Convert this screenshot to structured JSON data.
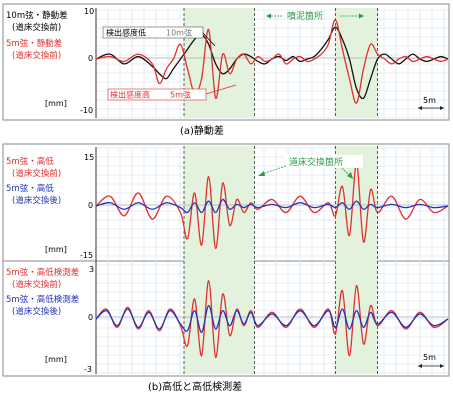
{
  "colors": {
    "black_series": "#111111",
    "red_series": "#e23030",
    "blue_series": "#2233bb",
    "shade": "#e3f2dd",
    "grid": "#cfe0ee",
    "annotation_green": "#2a9a4a"
  },
  "scale_label": "5m",
  "unit_label": "[mm]",
  "panel_a": {
    "caption": "(a)静動差",
    "legend": [
      {
        "text": "10m弦・静動差",
        "color": "#111111"
      },
      {
        "text": "(道床交換前)",
        "color": "#111111"
      },
      {
        "text": "5m弦・静動差",
        "color": "#e23030"
      },
      {
        "text": "(道床交換前)",
        "color": "#e23030"
      }
    ],
    "annotation_mud": "噴泥箇所",
    "label_low_sens": "検出感度低",
    "label_low_sens_tag": "10m弦",
    "label_high_sens": "検出感度高",
    "label_high_sens_tag": "5m弦"
  },
  "panel_b": {
    "caption": "(b)高低と高低検測差",
    "annotation_replace": "道床交換箇所",
    "top_legend": [
      {
        "text": "5m弦・高低",
        "color": "#e23030"
      },
      {
        "text": "(道床交換前)",
        "color": "#e23030"
      },
      {
        "text": "5m弦・高低",
        "color": "#2233bb"
      },
      {
        "text": "(道床交換後)",
        "color": "#2233bb"
      }
    ],
    "bottom_legend": [
      {
        "text": "5m弦・高低検測差",
        "color": "#e23030"
      },
      {
        "text": "(道床交換前)",
        "color": "#e23030"
      },
      {
        "text": "5m弦・高低検測差",
        "color": "#2233bb"
      },
      {
        "text": "(道床交換後)",
        "color": "#2233bb"
      }
    ]
  },
  "chart_data": [
    {
      "type": "line",
      "title": "(a)静動差",
      "ylabel": "[mm]",
      "ylim": [
        -10,
        10
      ],
      "yticks": [
        -10,
        0,
        10
      ],
      "xlim": [
        0,
        100
      ],
      "shaded_x": [
        [
          25,
          45
        ],
        [
          68,
          80
        ]
      ],
      "series": [
        {
          "name": "10m弦・静動差 (道床交換前)",
          "color": "#111111",
          "x": [
            0,
            4,
            8,
            12,
            16,
            18,
            20,
            22,
            24,
            26,
            28,
            30,
            32,
            34,
            36,
            38,
            40,
            42,
            44,
            46,
            48,
            50,
            52,
            54,
            56,
            58,
            60,
            62,
            64,
            66,
            68,
            70,
            72,
            74,
            76,
            78,
            80,
            82,
            84,
            86,
            88,
            90,
            92,
            94,
            96,
            98,
            100
          ],
          "y": [
            0,
            1,
            -1,
            0.5,
            -1.5,
            -3,
            -4,
            -2,
            0,
            2,
            4,
            5,
            3,
            -1,
            -3,
            -2,
            0,
            1,
            0.5,
            -0.5,
            -1,
            0,
            0.5,
            -0.3,
            0.5,
            -0.5,
            0,
            0.5,
            2,
            4,
            6.5,
            4,
            0,
            -6,
            -8,
            -4,
            0,
            1,
            0,
            -1,
            0,
            1,
            0,
            -0.5,
            0,
            0.5,
            0
          ]
        },
        {
          "name": "5m弦・静動差 (道床交換前)",
          "color": "#e23030",
          "x": [
            0,
            4,
            8,
            12,
            16,
            18,
            20,
            22,
            24,
            26,
            28,
            30,
            32,
            34,
            36,
            38,
            40,
            42,
            44,
            46,
            48,
            50,
            52,
            54,
            56,
            58,
            60,
            62,
            64,
            66,
            68,
            70,
            72,
            74,
            76,
            78,
            80,
            82,
            84,
            86,
            88,
            90,
            92,
            94,
            96,
            98,
            100
          ],
          "y": [
            0,
            0.5,
            -0.5,
            1,
            -1,
            -5,
            -2,
            0,
            3,
            -2,
            -7,
            -4,
            6,
            -8,
            1,
            -3,
            0,
            1,
            -1,
            0.5,
            -0.5,
            0,
            1,
            -1,
            0,
            0.5,
            -0.5,
            0,
            1,
            3,
            8,
            2,
            -4,
            -9,
            -2,
            3,
            1,
            0,
            -1,
            0,
            0.5,
            -0.5,
            0,
            0.5,
            0,
            -0.5,
            0
          ]
        }
      ]
    },
    {
      "type": "line",
      "title": "(b)高低と高低検測差",
      "ylabel": "[mm]",
      "ylim": [
        -15,
        15
      ],
      "yticks": [
        -15,
        0,
        15
      ],
      "xlim": [
        0,
        100
      ],
      "shaded_x": [
        [
          25,
          45
        ],
        [
          68,
          80
        ]
      ],
      "series": [
        {
          "name": "5m弦・高低 (道床交換前)",
          "color": "#e23030",
          "x": [
            0,
            4,
            8,
            12,
            16,
            20,
            24,
            26,
            28,
            30,
            32,
            34,
            36,
            38,
            40,
            42,
            44,
            46,
            50,
            54,
            58,
            62,
            66,
            68,
            70,
            72,
            74,
            76,
            78,
            80,
            84,
            88,
            92,
            96,
            100
          ],
          "y": [
            0,
            3,
            -3,
            4,
            -4,
            3,
            -2,
            -10,
            4,
            -12,
            9,
            -13,
            7,
            -6,
            2,
            -2,
            1,
            -1,
            2,
            -2,
            3,
            -2,
            1,
            -3,
            6,
            -9,
            13,
            -11,
            5,
            -2,
            3,
            -4,
            2,
            -2,
            0
          ]
        },
        {
          "name": "5m弦・高低 (道床交換後)",
          "color": "#2233bb",
          "x": [
            0,
            4,
            8,
            12,
            16,
            20,
            24,
            26,
            28,
            30,
            32,
            34,
            36,
            38,
            40,
            42,
            44,
            46,
            50,
            54,
            58,
            62,
            66,
            68,
            70,
            72,
            74,
            76,
            78,
            80,
            84,
            88,
            92,
            96,
            100
          ],
          "y": [
            0,
            1,
            -1,
            1,
            -1,
            1,
            -0.5,
            -2,
            1,
            -2,
            1.5,
            -2,
            2,
            -1,
            0.5,
            -0.5,
            0.5,
            -0.5,
            0.5,
            -0.5,
            1,
            -0.5,
            0.5,
            -0.5,
            1,
            -1,
            1.5,
            -1,
            0.5,
            -0.5,
            0.5,
            -0.5,
            0.5,
            -0.5,
            0
          ]
        }
      ]
    },
    {
      "type": "line",
      "ylabel": "[mm]",
      "ylim": [
        -3,
        3
      ],
      "yticks": [
        -3,
        0,
        3
      ],
      "xlim": [
        0,
        100
      ],
      "shaded_x": [
        [
          25,
          45
        ],
        [
          68,
          80
        ]
      ],
      "series": [
        {
          "name": "5m弦・高低検測差 (道床交換前)",
          "color": "#e23030",
          "x": [
            0,
            3,
            6,
            9,
            12,
            15,
            18,
            21,
            24,
            26,
            28,
            30,
            32,
            34,
            36,
            38,
            40,
            42,
            44,
            46,
            50,
            54,
            58,
            62,
            66,
            68,
            70,
            72,
            74,
            76,
            78,
            80,
            84,
            88,
            92,
            96,
            100
          ],
          "y": [
            0,
            0.6,
            -0.5,
            0.7,
            -0.6,
            0.5,
            -0.7,
            0.6,
            -0.4,
            -1.6,
            1.2,
            -2.2,
            2.3,
            -2.3,
            1.5,
            -1.0,
            0.6,
            -0.4,
            0.5,
            -0.5,
            0.4,
            -0.5,
            0.6,
            -0.5,
            0.6,
            -0.9,
            1.7,
            -2.2,
            2.0,
            -1.5,
            0.8,
            -0.4,
            0.5,
            -0.6,
            0.4,
            -0.5,
            0
          ]
        },
        {
          "name": "5m弦・高低検測差 (道床交換後)",
          "color": "#2233bb",
          "x": [
            0,
            3,
            6,
            9,
            12,
            15,
            18,
            21,
            24,
            26,
            28,
            30,
            32,
            34,
            36,
            38,
            40,
            42,
            44,
            46,
            50,
            54,
            58,
            62,
            66,
            68,
            70,
            72,
            74,
            76,
            78,
            80,
            84,
            88,
            92,
            96,
            100
          ],
          "y": [
            0,
            0.5,
            -0.4,
            0.6,
            -0.5,
            0.4,
            -0.6,
            0.5,
            -0.3,
            -0.7,
            0.5,
            -0.8,
            0.8,
            -0.6,
            0.5,
            -0.4,
            0.5,
            -0.3,
            0.4,
            -0.4,
            0.3,
            -0.4,
            0.5,
            -0.4,
            0.5,
            -0.5,
            0.6,
            -0.6,
            0.5,
            -0.5,
            0.4,
            -0.3,
            0.4,
            -0.5,
            0.3,
            -0.4,
            0
          ]
        }
      ]
    }
  ]
}
